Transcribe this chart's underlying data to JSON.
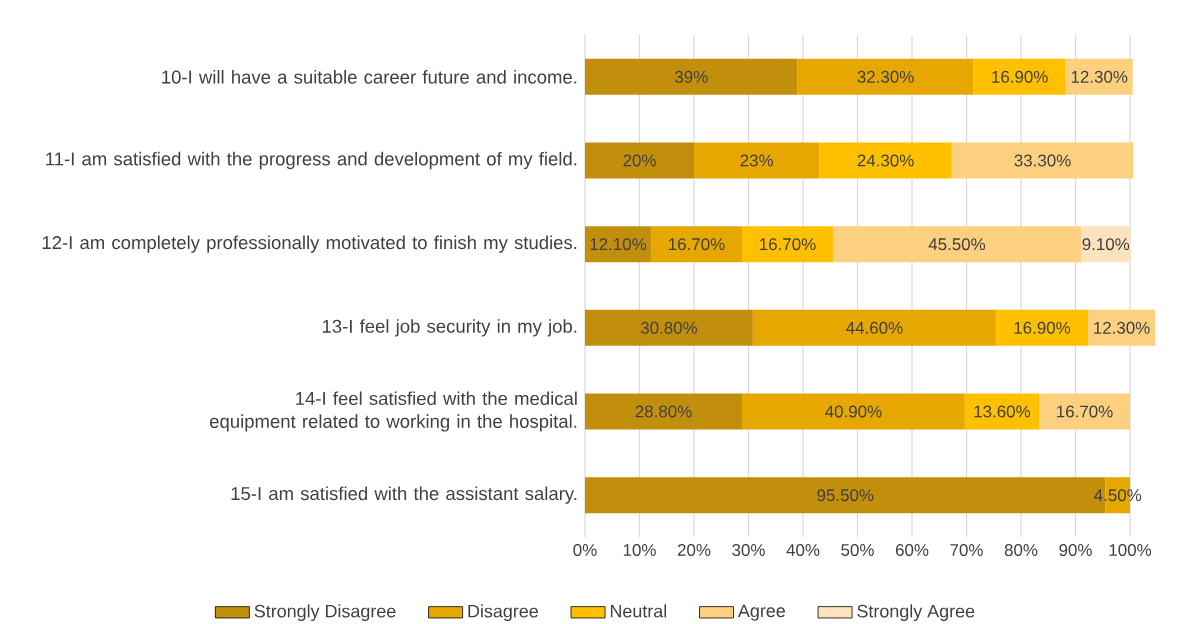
{
  "chart_data": {
    "type": "bar",
    "orientation": "horizontal",
    "stacked": true,
    "categories": [
      "10-I will have a suitable career future and income.",
      "11-I am satisfied with the progress and development of my field.",
      "12-I am completely professionally motivated to finish my studies.",
      "13-I feel job security in my job.",
      "14-I feel satisfied with the medical equipment related to working in the hospital.",
      "15-I am satisfied with the assistant salary."
    ],
    "series": [
      {
        "name": "Strongly Disagree",
        "color": "#c28f0c",
        "values": [
          39,
          20,
          12.1,
          30.8,
          28.8,
          95.5
        ],
        "value_labels": [
          "39%",
          "20%",
          "12.10%",
          "30.80%",
          "28.80%",
          "95.50%"
        ]
      },
      {
        "name": "Disagree",
        "color": "#e6a800",
        "values": [
          32.3,
          23,
          16.7,
          44.6,
          40.9,
          4.5
        ],
        "value_labels": [
          "32.30%",
          "23%",
          "16.70%",
          "44.60%",
          "40.90%",
          "4.50%"
        ]
      },
      {
        "name": "Neutral",
        "color": "#ffc000",
        "values": [
          16.9,
          24.3,
          16.7,
          16.9,
          13.6,
          null
        ],
        "value_labels": [
          "16.90%",
          "24.30%",
          "16.70%",
          "16.90%",
          "13.60%",
          null
        ]
      },
      {
        "name": "Agree",
        "color": "#fdd080",
        "values": [
          12.3,
          33.3,
          45.5,
          12.3,
          16.7,
          null
        ],
        "value_labels": [
          "12.30%",
          "33.30%",
          "45.50%",
          "12.30%",
          "16.70%",
          null
        ]
      },
      {
        "name": "Strongly Agree",
        "color": "#fde3bd",
        "values": [
          null,
          null,
          9.1,
          null,
          null,
          null
        ],
        "value_labels": [
          null,
          null,
          "9.10%",
          null,
          null,
          null
        ]
      }
    ],
    "xlim": [
      0,
      105
    ],
    "xticks": [
      {
        "value": 0,
        "label": "0%"
      },
      {
        "value": 10,
        "label": "10%"
      },
      {
        "value": 20,
        "label": "20%"
      },
      {
        "value": 30,
        "label": "30%"
      },
      {
        "value": 40,
        "label": "40%"
      },
      {
        "value": 50,
        "label": "50%"
      },
      {
        "value": 60,
        "label": "60%"
      },
      {
        "value": 70,
        "label": "70%"
      },
      {
        "value": 80,
        "label": "80%"
      },
      {
        "value": 90,
        "label": "90%"
      },
      {
        "value": 100,
        "label": "100%"
      }
    ],
    "grid": "x",
    "legend": "bottom"
  }
}
